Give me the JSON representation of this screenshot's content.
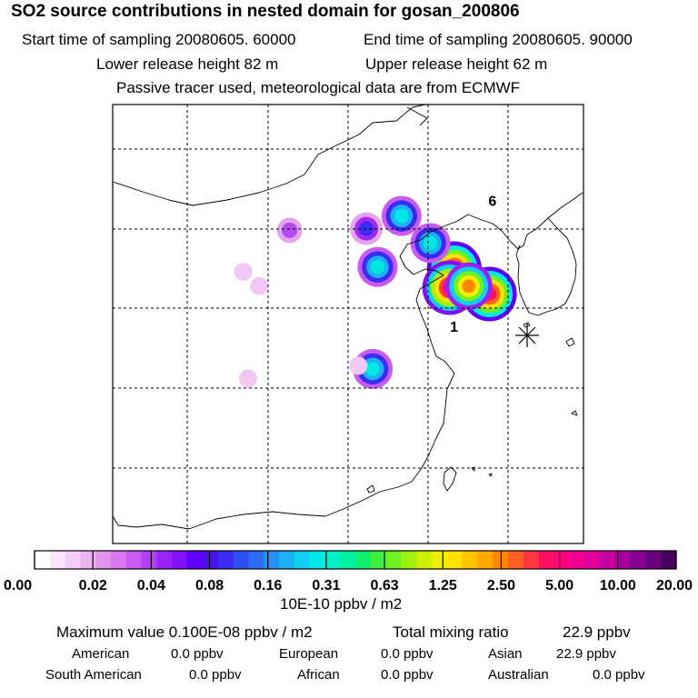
{
  "header": {
    "title": "SO2 source contributions in nested domain for gosan_200806",
    "start_time": "Start time of sampling 20080605. 60000",
    "end_time": "End time of sampling 20080605. 90000",
    "lower_height": "Lower release height   82 m",
    "upper_height": "Upper release height   62 m",
    "tracer_note": "Passive tracer used, meteorological data are from ECMWF"
  },
  "chart_data": {
    "type": "heatmap",
    "title": "SO2 source contributions in nested domain for gosan_200806",
    "colorbar": {
      "tick_labels": [
        "0.00",
        "0.02",
        "0.04",
        "0.08",
        "0.16",
        "0.31",
        "0.63",
        "1.25",
        "2.50",
        "5.00",
        "10.00",
        "20.00"
      ],
      "unit": "10E-10 ppbv / m2",
      "colors": [
        "#ffffff",
        "#fbe6fb",
        "#f4cdf6",
        "#edb3f1",
        "#e394ee",
        "#d977f0",
        "#c95af2",
        "#b43ff4",
        "#9a22f6",
        "#7f10f8",
        "#6000f8",
        "#4a10f2",
        "#3a2cf0",
        "#2f4cf2",
        "#2a6cf4",
        "#2490f6",
        "#1cb0f6",
        "#10cef2",
        "#00e8e8",
        "#00f0c8",
        "#00f0a0",
        "#10f070",
        "#40f040",
        "#70f020",
        "#a0f010",
        "#cdf000",
        "#f0f000",
        "#ffe000",
        "#ffc400",
        "#ffa800",
        "#ff8800",
        "#ff6020",
        "#ff3840",
        "#ff1060",
        "#ff0080",
        "#f00090",
        "#e0009a",
        "#c800a0",
        "#a8009a",
        "#880090",
        "#680080",
        "#480060"
      ]
    },
    "markers": [
      {
        "label": "1",
        "lat": 33.3,
        "lon": 126.2
      },
      {
        "label": "6",
        "lat": 41.2,
        "lon": 128.6
      }
    ],
    "receptor": {
      "name": "gosan",
      "lat": 33.3,
      "lon": 126.2
    },
    "grid": true,
    "hotspots": [
      {
        "lon": 126.7,
        "lat": 37.5,
        "level": 7
      },
      {
        "lon": 128.9,
        "lat": 35.9,
        "level": 7
      },
      {
        "lon": 126.4,
        "lat": 36.3,
        "level": 6
      },
      {
        "lon": 127.6,
        "lat": 36.4,
        "level": 5
      },
      {
        "lon": 125.2,
        "lat": 39.1,
        "level": 3
      },
      {
        "lon": 121.9,
        "lat": 37.6,
        "level": 3
      },
      {
        "lon": 121.6,
        "lat": 31.2,
        "level": 3
      },
      {
        "lon": 121.2,
        "lat": 40.0,
        "level": 2
      },
      {
        "lon": 123.4,
        "lat": 40.8,
        "level": 3
      },
      {
        "lon": 116.4,
        "lat": 39.9,
        "level": 1
      },
      {
        "lon": 120.7,
        "lat": 31.4,
        "level": 0
      },
      {
        "lon": 113.5,
        "lat": 37.3,
        "level": 0
      },
      {
        "lon": 114.5,
        "lat": 36.4,
        "level": 0
      },
      {
        "lon": 113.8,
        "lat": 30.6,
        "level": 0
      }
    ]
  },
  "footer": {
    "max_value": "Maximum value  0.100E-08 ppbv / m2",
    "total_label": "Total mixing ratio",
    "total_value": "22.9 ppbv",
    "regions": {
      "american_label": "American",
      "american_value": "0.0 ppbv",
      "european_label": "European",
      "european_value": "0.0 ppbv",
      "asian_label": "Asian",
      "asian_value": "22.9 ppbv",
      "south_american_label": "South American",
      "south_american_value": "0.0 ppbv",
      "african_label": "African",
      "african_value": "0.0 ppbv",
      "australian_label": "Australian",
      "australian_value": "0.0 ppbv"
    }
  }
}
